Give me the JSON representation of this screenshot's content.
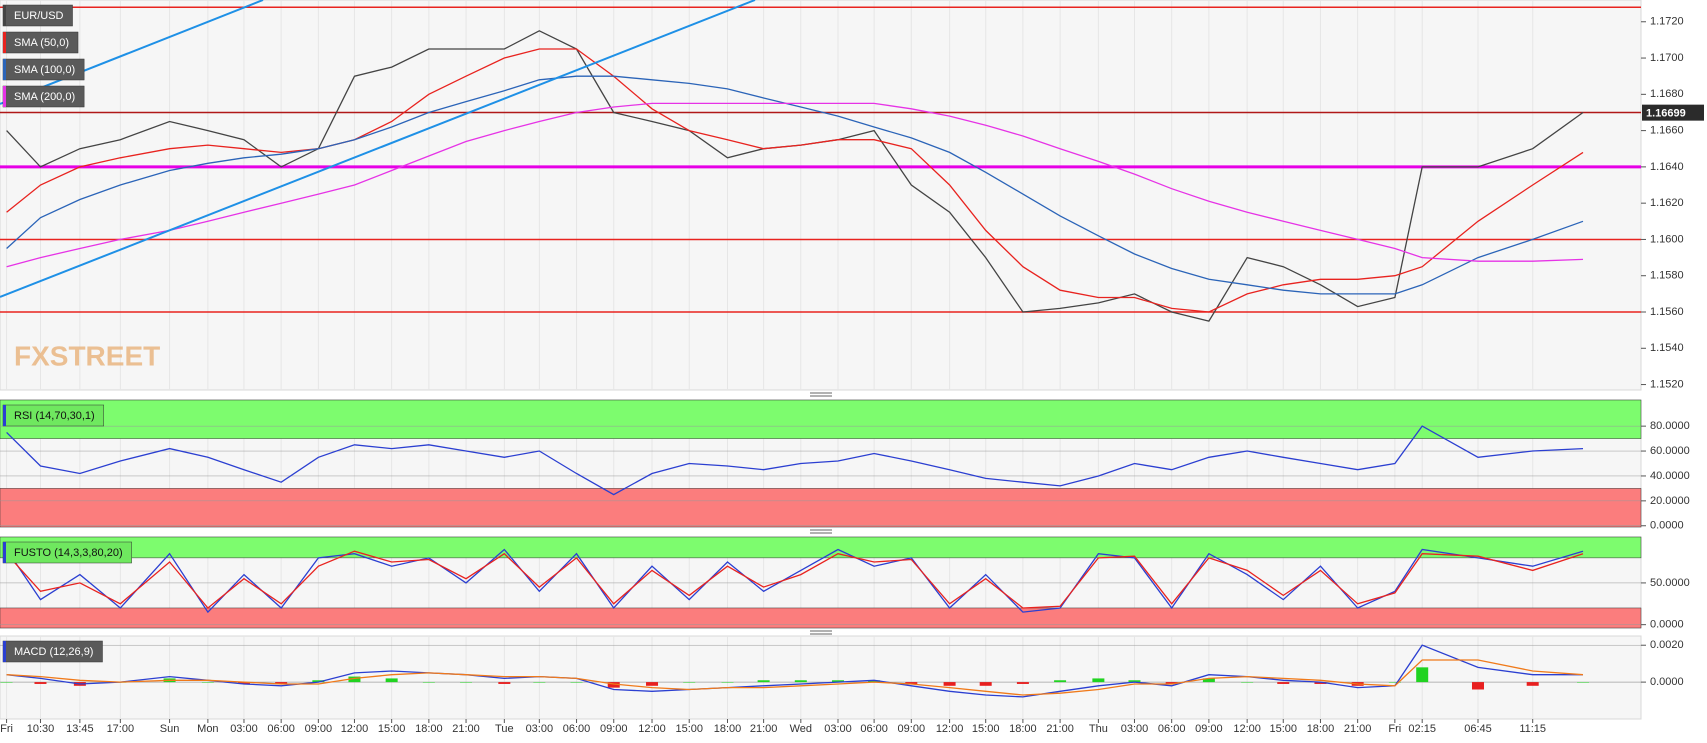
{
  "chart_data": [
    {
      "type": "line",
      "title": "EUR/USD",
      "series": [
        {
          "color": "#444444",
          "values": [
            1.166,
            1.164,
            1.165,
            1.1655,
            1.1665,
            1.166,
            1.1655,
            1.164,
            1.165,
            1.169,
            1.1695,
            1.1705,
            1.1705,
            1.1705,
            1.1715,
            1.1705,
            1.167,
            1.1665,
            1.166,
            1.1645,
            1.165,
            1.1652,
            1.1655,
            1.166,
            1.163,
            1.1615,
            1.159,
            1.156,
            1.1562,
            1.1565,
            1.157,
            1.156,
            1.1555,
            1.159,
            1.1585,
            1.1575,
            1.1563,
            1.1568,
            1.164,
            1.164,
            1.165,
            1.167
          ]
        },
        {
          "name": "SMA (50,0)",
          "color": "#e8231f",
          "values": [
            1.1615,
            1.163,
            1.164,
            1.1645,
            1.165,
            1.1652,
            1.165,
            1.1648,
            1.165,
            1.1655,
            1.1665,
            1.168,
            1.169,
            1.17,
            1.1705,
            1.1705,
            1.169,
            1.1672,
            1.166,
            1.1655,
            1.165,
            1.1652,
            1.1655,
            1.1655,
            1.165,
            1.163,
            1.1605,
            1.1585,
            1.1572,
            1.1568,
            1.1568,
            1.1562,
            1.156,
            1.157,
            1.1575,
            1.1578,
            1.1578,
            1.158,
            1.1585,
            1.161,
            1.163,
            1.1648
          ]
        },
        {
          "name": "SMA (100,0)",
          "color": "#2b64b8",
          "values": [
            1.1595,
            1.1612,
            1.1622,
            1.163,
            1.1638,
            1.1642,
            1.1645,
            1.1647,
            1.165,
            1.1655,
            1.1662,
            1.167,
            1.1676,
            1.1682,
            1.1688,
            1.169,
            1.169,
            1.1688,
            1.1686,
            1.1683,
            1.1678,
            1.1673,
            1.1668,
            1.1662,
            1.1656,
            1.1648,
            1.1637,
            1.1625,
            1.1613,
            1.1602,
            1.1592,
            1.1584,
            1.1578,
            1.1575,
            1.1572,
            1.157,
            1.157,
            1.157,
            1.1575,
            1.159,
            1.16,
            1.161
          ]
        },
        {
          "name": "SMA (200,0)",
          "color": "#e633e6",
          "values": [
            1.1585,
            1.159,
            1.1595,
            1.16,
            1.1605,
            1.161,
            1.1615,
            1.162,
            1.1625,
            1.163,
            1.1638,
            1.1646,
            1.1654,
            1.166,
            1.1665,
            1.167,
            1.1673,
            1.1675,
            1.1675,
            1.1675,
            1.1675,
            1.1675,
            1.1675,
            1.1675,
            1.1672,
            1.1668,
            1.1663,
            1.1657,
            1.165,
            1.1643,
            1.1636,
            1.1628,
            1.1621,
            1.1615,
            1.161,
            1.1605,
            1.16,
            1.1595,
            1.159,
            1.1588,
            1.1588,
            1.1589
          ]
        }
      ],
      "levels": [
        {
          "value": 1.1728,
          "color": "#e8231f"
        },
        {
          "value": 1.167,
          "color": "#b01818"
        },
        {
          "value": 1.164,
          "color": "#e600e6"
        },
        {
          "value": 1.16,
          "color": "#e8231f"
        },
        {
          "value": 1.156,
          "color": "#e8231f"
        }
      ],
      "last_price": 1.16699,
      "watermark": "FXSTREET",
      "ylim": [
        1.1517,
        1.1732
      ],
      "yticks": [
        {
          "value": 1.152,
          "label": "1.1520"
        },
        {
          "value": 1.154,
          "label": "1.1540"
        },
        {
          "value": 1.156,
          "label": "1.1560"
        },
        {
          "value": 1.158,
          "label": "1.1580"
        },
        {
          "value": 1.16,
          "label": "1.1600"
        },
        {
          "value": 1.162,
          "label": "1.1620"
        },
        {
          "value": 1.164,
          "label": "1.1640"
        },
        {
          "value": 1.166,
          "label": "1.1660"
        },
        {
          "value": 1.168,
          "label": "1.1680"
        },
        {
          "value": 1.17,
          "label": "1.1700"
        },
        {
          "value": 1.172,
          "label": "1.1720"
        }
      ],
      "grid": true
    },
    {
      "type": "line",
      "title": "RSI (14,70,30,1)",
      "series": [
        {
          "color": "#2b3fd1",
          "values": [
            75,
            48,
            42,
            52,
            62,
            55,
            45,
            35,
            55,
            65,
            62,
            65,
            60,
            55,
            60,
            42,
            25,
            42,
            50,
            48,
            45,
            50,
            52,
            58,
            52,
            45,
            38,
            35,
            32,
            40,
            50,
            45,
            55,
            60,
            55,
            50,
            45,
            50,
            80,
            55,
            60,
            62
          ]
        }
      ],
      "upper_band": 70,
      "lower_band": 30,
      "ylim": [
        -1,
        101
      ],
      "yticks": [
        {
          "value": 0,
          "label": "0.0000"
        },
        {
          "value": 20,
          "label": "20.0000"
        },
        {
          "value": 40,
          "label": "40.0000"
        },
        {
          "value": 60,
          "label": "60.0000"
        },
        {
          "value": 80,
          "label": "80.0000"
        }
      ],
      "grid": true
    },
    {
      "type": "line",
      "title": "FUSTO (14,3,3,80,20)",
      "series": [
        {
          "color": "#2b3fd1",
          "values": [
            90,
            30,
            60,
            20,
            85,
            15,
            60,
            20,
            80,
            85,
            70,
            80,
            50,
            90,
            40,
            85,
            20,
            70,
            30,
            75,
            40,
            65,
            90,
            70,
            80,
            20,
            60,
            15,
            20,
            85,
            80,
            20,
            85,
            60,
            30,
            70,
            20,
            40,
            90,
            80,
            70,
            88
          ]
        },
        {
          "color": "#e8231f",
          "values": [
            85,
            40,
            50,
            25,
            75,
            20,
            55,
            25,
            70,
            88,
            75,
            78,
            55,
            85,
            45,
            80,
            25,
            65,
            35,
            70,
            45,
            60,
            85,
            75,
            78,
            25,
            55,
            20,
            22,
            80,
            82,
            25,
            80,
            65,
            35,
            65,
            25,
            38,
            85,
            82,
            65,
            85
          ]
        }
      ],
      "upper_band": 80,
      "lower_band": 20,
      "ylim": [
        -4,
        105
      ],
      "yticks": [
        {
          "value": 0,
          "label": "0.0000"
        },
        {
          "value": 50,
          "label": "50.0000"
        }
      ],
      "grid": true
    },
    {
      "type": "line",
      "title": "MACD (12,26,9)",
      "categories": [
        "Fri",
        "10:30",
        "13:45",
        "17:00",
        "Sun",
        "Mon",
        "03:00",
        "06:00",
        "09:00",
        "12:00",
        "15:00",
        "18:00",
        "21:00",
        "Tue",
        "03:00",
        "06:00",
        "09:00",
        "12:00",
        "15:00",
        "18:00",
        "21:00",
        "Wed",
        "03:00",
        "06:00",
        "09:00",
        "12:00",
        "15:00",
        "18:00",
        "21:00",
        "Thu",
        "03:00",
        "06:00",
        "09:00",
        "12:00",
        "15:00",
        "18:00",
        "21:00",
        "Fri",
        "02:15",
        "06:45",
        "11:15",
        null
      ],
      "series": [
        {
          "color": "#2b3fd1",
          "values": [
            0.0004,
            0.0002,
            -0.0001,
            0,
            0.0003,
            0.0001,
            -0.0001,
            -0.0002,
            0,
            0.0005,
            0.0006,
            0.0005,
            0.0004,
            0.0002,
            0.0003,
            0.0002,
            -0.0004,
            -0.0005,
            -0.0004,
            -0.0003,
            -0.0002,
            -0.0001,
            0,
            0.0001,
            -0.0002,
            -0.0005,
            -0.0007,
            -0.0008,
            -0.0005,
            -0.0002,
            0,
            -0.0002,
            0.0004,
            0.0003,
            0.0001,
            0,
            -0.0003,
            -0.0002,
            0.002,
            0.0008,
            0.0004,
            0.0004
          ]
        },
        {
          "color": "#f07a1a",
          "values": [
            0.0004,
            0.0003,
            0.0001,
            0,
            0.0001,
            0.0001,
            0,
            -0.0001,
            -0.0001,
            0.0002,
            0.0004,
            0.0005,
            0.0004,
            0.0003,
            0.0003,
            0.0002,
            -0.0001,
            -0.0003,
            -0.0004,
            -0.0003,
            -0.0003,
            -0.0002,
            -0.0001,
            0,
            -0.0001,
            -0.0003,
            -0.0005,
            -0.0007,
            -0.0006,
            -0.0004,
            -0.0001,
            -0.0001,
            0.0002,
            0.0003,
            0.0002,
            0.0001,
            -0.0001,
            -0.0002,
            0.0012,
            0.0012,
            0.0006,
            0.0004
          ]
        }
      ],
      "histogram": [
        0,
        -0.0001,
        -0.0002,
        0,
        0.0002,
        0,
        -0.0001,
        -0.0001,
        0.0001,
        0.0003,
        0.0002,
        0,
        0,
        -0.0001,
        0,
        0,
        -0.0003,
        -0.0002,
        0,
        0,
        0.0001,
        0.0001,
        0.0001,
        0.0001,
        -0.0001,
        -0.0002,
        -0.0002,
        -0.0001,
        0.0001,
        0.0002,
        0.0001,
        -0.0001,
        0.0002,
        0,
        -0.0001,
        -0.0001,
        -0.0002,
        0,
        0.0008,
        -0.0004,
        -0.0002,
        0
      ],
      "ylim": [
        -0.002,
        0.0025
      ],
      "yticks": [
        {
          "value": 0,
          "label": "0.0000"
        },
        {
          "value": 0.002,
          "label": "0.0020"
        }
      ],
      "grid": true
    }
  ]
}
